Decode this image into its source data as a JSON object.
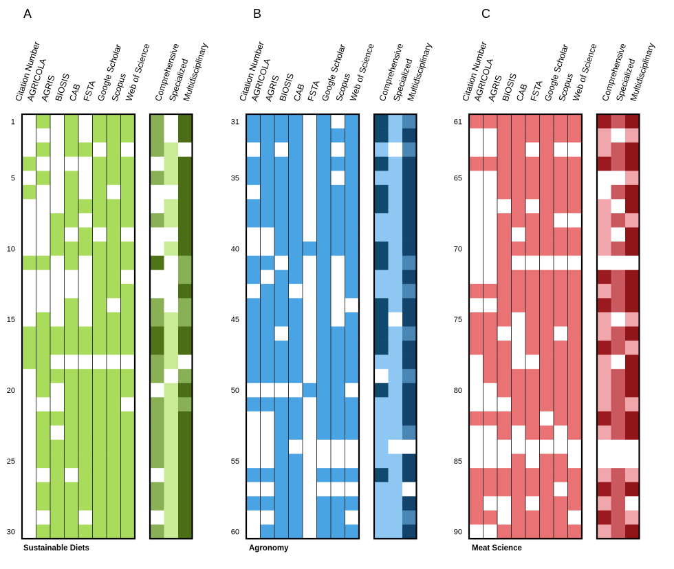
{
  "figure": {
    "panels": [
      "A",
      "B",
      "C"
    ],
    "database_headers": [
      "Citation Number",
      "AGRICOLA",
      "AGRIS",
      "BIOSIS",
      "CAB",
      "FSTA",
      "Google Scholar",
      "Scopus",
      "Web of Science"
    ],
    "category_headers": [
      "Comprehensive",
      "Specialized",
      "Multidisciplinary"
    ]
  },
  "chart_data": [
    {
      "type": "heatmap",
      "panel": "A",
      "title": "Sustainable Diets",
      "row_labels": [
        "1",
        "5",
        "10",
        "15",
        "20",
        "25",
        "30"
      ],
      "row_label_values": [
        1,
        5,
        10,
        15,
        20,
        25,
        30
      ],
      "rows": [
        1,
        30
      ],
      "columns": [
        "AGRICOLA",
        "AGRIS",
        "BIOSIS",
        "CAB",
        "FSTA",
        "Google Scholar",
        "Scopus",
        "Web of Science"
      ],
      "categories": [
        "Comprehensive",
        "Specialized",
        "Multidisciplinary"
      ],
      "colors": {
        "database": "#a9dc5d",
        "comprehensive": "#89b054",
        "specialized": "#c9eb98",
        "multidisciplinary": "#4a6d16",
        "dark_category": "#4f7417"
      },
      "present": [
        [
          0,
          1,
          0,
          1,
          0,
          1,
          1,
          1
        ],
        [
          0,
          0,
          0,
          1,
          0,
          1,
          1,
          1
        ],
        [
          0,
          1,
          0,
          1,
          1,
          0,
          1,
          0
        ],
        [
          1,
          0,
          0,
          0,
          0,
          1,
          1,
          1
        ],
        [
          0,
          1,
          0,
          1,
          0,
          1,
          1,
          1
        ],
        [
          1,
          0,
          0,
          1,
          0,
          1,
          0,
          1
        ],
        [
          0,
          0,
          0,
          1,
          1,
          1,
          1,
          1
        ],
        [
          0,
          0,
          1,
          1,
          0,
          1,
          1,
          1
        ],
        [
          0,
          0,
          1,
          0,
          1,
          0,
          1,
          0
        ],
        [
          0,
          0,
          1,
          1,
          1,
          1,
          1,
          1
        ],
        [
          1,
          1,
          0,
          1,
          0,
          1,
          1,
          1
        ],
        [
          0,
          0,
          0,
          0,
          0,
          1,
          1,
          0
        ],
        [
          0,
          0,
          0,
          0,
          0,
          1,
          1,
          1
        ],
        [
          0,
          0,
          0,
          1,
          0,
          1,
          0,
          1
        ],
        [
          0,
          1,
          0,
          1,
          0,
          1,
          1,
          1
        ],
        [
          1,
          1,
          1,
          1,
          1,
          1,
          1,
          1
        ],
        [
          1,
          1,
          1,
          1,
          1,
          1,
          1,
          1
        ],
        [
          1,
          1,
          0,
          0,
          0,
          0,
          0,
          0
        ],
        [
          0,
          1,
          1,
          1,
          1,
          1,
          1,
          1
        ],
        [
          0,
          1,
          0,
          1,
          1,
          1,
          1,
          1
        ],
        [
          0,
          0,
          0,
          1,
          1,
          1,
          1,
          0
        ],
        [
          0,
          1,
          1,
          1,
          1,
          1,
          1,
          1
        ],
        [
          0,
          1,
          0,
          1,
          1,
          1,
          1,
          1
        ],
        [
          0,
          1,
          1,
          1,
          1,
          1,
          1,
          1
        ],
        [
          0,
          1,
          1,
          1,
          1,
          1,
          1,
          1
        ],
        [
          0,
          0,
          1,
          0,
          1,
          1,
          1,
          1
        ],
        [
          0,
          1,
          1,
          1,
          1,
          1,
          1,
          1
        ],
        [
          0,
          1,
          1,
          1,
          1,
          1,
          1,
          1
        ],
        [
          0,
          0,
          1,
          1,
          0,
          1,
          1,
          1
        ],
        [
          0,
          1,
          1,
          1,
          1,
          1,
          1,
          1
        ]
      ],
      "category_levels": [
        [
          1,
          0,
          2
        ],
        [
          1,
          0,
          2
        ],
        [
          1,
          1,
          0
        ],
        [
          0,
          1,
          2
        ],
        [
          1,
          1,
          2
        ],
        [
          0,
          0,
          2
        ],
        [
          0,
          1,
          2
        ],
        [
          1,
          1,
          2
        ],
        [
          0,
          0,
          2
        ],
        [
          0,
          1,
          2
        ],
        [
          2,
          0,
          1
        ],
        [
          0,
          0,
          1
        ],
        [
          0,
          0,
          2
        ],
        [
          1,
          0,
          1
        ],
        [
          1,
          1,
          1
        ],
        [
          2,
          1,
          2
        ],
        [
          2,
          1,
          2
        ],
        [
          1,
          1,
          0
        ],
        [
          1,
          0,
          1
        ],
        [
          0,
          1,
          2
        ],
        [
          1,
          1,
          1
        ],
        [
          1,
          1,
          2
        ],
        [
          1,
          1,
          2
        ],
        [
          1,
          1,
          2
        ],
        [
          1,
          1,
          2
        ],
        [
          0,
          1,
          2
        ],
        [
          1,
          1,
          2
        ],
        [
          1,
          1,
          2
        ],
        [
          0,
          1,
          2
        ],
        [
          1,
          1,
          2
        ]
      ]
    },
    {
      "type": "heatmap",
      "panel": "B",
      "title": "Agronomy",
      "row_labels": [
        "31",
        "35",
        "40",
        "45",
        "50",
        "55",
        "60"
      ],
      "row_label_values": [
        31,
        35,
        40,
        45,
        50,
        55,
        60
      ],
      "rows": [
        31,
        60
      ],
      "columns": [
        "AGRICOLA",
        "AGRIS",
        "BIOSIS",
        "CAB",
        "FSTA",
        "Google Scholar",
        "Scopus",
        "Web of Science"
      ],
      "categories": [
        "Comprehensive",
        "Specialized",
        "Multidisciplinary"
      ],
      "colors": {
        "database": "#4aa3e3",
        "comprehensive": "#0f4a6e",
        "specialized": "#8ec8f2",
        "multidisciplinary": "#13436a",
        "mid": "#4a86b4"
      },
      "present": [
        [
          1,
          1,
          1,
          1,
          0,
          1,
          0,
          1
        ],
        [
          1,
          1,
          1,
          1,
          0,
          1,
          1,
          1
        ],
        [
          0,
          1,
          0,
          1,
          0,
          1,
          0,
          1
        ],
        [
          1,
          1,
          1,
          1,
          0,
          1,
          1,
          1
        ],
        [
          1,
          1,
          1,
          1,
          0,
          1,
          0,
          1
        ],
        [
          0,
          1,
          1,
          1,
          0,
          1,
          1,
          1
        ],
        [
          1,
          1,
          1,
          1,
          0,
          1,
          1,
          1
        ],
        [
          1,
          1,
          1,
          1,
          0,
          1,
          1,
          1
        ],
        [
          0,
          0,
          1,
          1,
          0,
          1,
          1,
          1
        ],
        [
          0,
          0,
          1,
          1,
          1,
          1,
          1,
          1
        ],
        [
          1,
          1,
          0,
          1,
          0,
          1,
          0,
          1
        ],
        [
          1,
          0,
          1,
          1,
          0,
          1,
          0,
          1
        ],
        [
          0,
          1,
          1,
          0,
          0,
          1,
          0,
          1
        ],
        [
          1,
          1,
          1,
          1,
          0,
          1,
          0,
          0
        ],
        [
          1,
          1,
          1,
          1,
          0,
          1,
          0,
          1
        ],
        [
          1,
          1,
          0,
          1,
          0,
          1,
          1,
          1
        ],
        [
          1,
          1,
          1,
          1,
          0,
          1,
          1,
          1
        ],
        [
          1,
          1,
          1,
          1,
          0,
          1,
          1,
          1
        ],
        [
          1,
          1,
          1,
          1,
          0,
          1,
          1,
          1
        ],
        [
          0,
          0,
          0,
          0,
          1,
          1,
          1,
          0
        ],
        [
          1,
          1,
          1,
          1,
          0,
          1,
          1,
          1
        ],
        [
          0,
          0,
          1,
          1,
          0,
          1,
          1,
          1
        ],
        [
          0,
          0,
          1,
          1,
          0,
          1,
          1,
          1
        ],
        [
          0,
          0,
          1,
          0,
          0,
          0,
          0,
          0
        ],
        [
          0,
          0,
          1,
          1,
          0,
          0,
          0,
          0
        ],
        [
          1,
          1,
          1,
          1,
          0,
          1,
          1,
          1
        ],
        [
          0,
          0,
          1,
          1,
          0,
          0,
          0,
          0
        ],
        [
          1,
          1,
          1,
          1,
          0,
          1,
          1,
          1
        ],
        [
          0,
          0,
          1,
          1,
          0,
          1,
          1,
          0
        ],
        [
          0,
          1,
          1,
          1,
          0,
          1,
          1,
          1
        ]
      ],
      "category_levels": [
        [
          2,
          1,
          1
        ],
        [
          2,
          1,
          2
        ],
        [
          1,
          0,
          1
        ],
        [
          2,
          1,
          2
        ],
        [
          1,
          1,
          2
        ],
        [
          2,
          1,
          2
        ],
        [
          2,
          1,
          2
        ],
        [
          1,
          1,
          2
        ],
        [
          1,
          1,
          2
        ],
        [
          2,
          1,
          2
        ],
        [
          2,
          1,
          1
        ],
        [
          1,
          1,
          2
        ],
        [
          1,
          1,
          1
        ],
        [
          2,
          1,
          2
        ],
        [
          2,
          0,
          2
        ],
        [
          2,
          1,
          1
        ],
        [
          2,
          1,
          2
        ],
        [
          1,
          1,
          2
        ],
        [
          0,
          1,
          1
        ],
        [
          2,
          1,
          2
        ],
        [
          1,
          1,
          2
        ],
        [
          1,
          1,
          2
        ],
        [
          1,
          1,
          1
        ],
        [
          1,
          0,
          0
        ],
        [
          1,
          1,
          2
        ],
        [
          2,
          1,
          2
        ],
        [
          1,
          1,
          0
        ],
        [
          1,
          1,
          2
        ],
        [
          1,
          1,
          1
        ],
        [
          1,
          1,
          2
        ]
      ]
    },
    {
      "type": "heatmap",
      "panel": "C",
      "title": "Meat Science",
      "row_labels": [
        "61",
        "65",
        "70",
        "75",
        "80",
        "85",
        "90"
      ],
      "row_label_values": [
        61,
        65,
        70,
        75,
        80,
        85,
        90
      ],
      "rows": [
        61,
        90
      ],
      "columns": [
        "AGRICOLA",
        "AGRIS",
        "BIOSIS",
        "CAB",
        "FSTA",
        "Google Scholar",
        "Scopus",
        "Web of Science"
      ],
      "categories": [
        "Comprehensive",
        "Specialized",
        "Multidisciplinary"
      ],
      "colors": {
        "database": "#e97274",
        "comprehensive": "#9b1a1f",
        "specialized": "#c9595f",
        "multidisciplinary": "#8f1519",
        "light": "#f0a6ab"
      },
      "present": [
        [
          1,
          1,
          1,
          1,
          1,
          1,
          1,
          1
        ],
        [
          0,
          0,
          1,
          1,
          1,
          1,
          1,
          1
        ],
        [
          0,
          0,
          1,
          1,
          0,
          1,
          0,
          0
        ],
        [
          1,
          1,
          1,
          1,
          1,
          1,
          1,
          1
        ],
        [
          0,
          0,
          1,
          1,
          1,
          1,
          1,
          1
        ],
        [
          0,
          0,
          1,
          1,
          1,
          1,
          1,
          1
        ],
        [
          0,
          0,
          0,
          1,
          0,
          1,
          1,
          1
        ],
        [
          0,
          0,
          1,
          1,
          1,
          1,
          0,
          0
        ],
        [
          0,
          0,
          1,
          0,
          1,
          1,
          1,
          1
        ],
        [
          0,
          0,
          1,
          1,
          1,
          1,
          1,
          1
        ],
        [
          0,
          0,
          1,
          0,
          0,
          0,
          0,
          0
        ],
        [
          0,
          0,
          1,
          1,
          1,
          1,
          1,
          1
        ],
        [
          1,
          1,
          1,
          1,
          1,
          1,
          1,
          1
        ],
        [
          0,
          0,
          1,
          1,
          1,
          1,
          1,
          1
        ],
        [
          1,
          1,
          1,
          0,
          1,
          1,
          1,
          1
        ],
        [
          1,
          1,
          0,
          0,
          1,
          1,
          0,
          1
        ],
        [
          1,
          1,
          1,
          0,
          1,
          1,
          1,
          1
        ],
        [
          0,
          1,
          1,
          0,
          0,
          1,
          1,
          1
        ],
        [
          0,
          1,
          1,
          1,
          1,
          1,
          1,
          1
        ],
        [
          0,
          0,
          1,
          1,
          1,
          1,
          1,
          1
        ],
        [
          0,
          0,
          0,
          1,
          1,
          1,
          1,
          1
        ],
        [
          1,
          1,
          1,
          1,
          1,
          0,
          1,
          1
        ],
        [
          0,
          0,
          1,
          0,
          1,
          1,
          0,
          1
        ],
        [
          0,
          0,
          0,
          0,
          0,
          0,
          0,
          0
        ],
        [
          0,
          0,
          0,
          1,
          0,
          1,
          1,
          0
        ],
        [
          1,
          1,
          1,
          1,
          1,
          1,
          1,
          1
        ],
        [
          1,
          1,
          1,
          1,
          1,
          1,
          0,
          1
        ],
        [
          1,
          0,
          0,
          1,
          0,
          1,
          1,
          1
        ],
        [
          1,
          1,
          0,
          1,
          1,
          1,
          1,
          0
        ],
        [
          0,
          0,
          1,
          1,
          1,
          1,
          1,
          1
        ]
      ],
      "category_levels": [
        [
          2,
          1,
          2
        ],
        [
          1,
          0,
          1
        ],
        [
          1,
          1,
          2
        ],
        [
          2,
          1,
          2
        ],
        [
          0,
          0,
          1
        ],
        [
          0,
          1,
          2
        ],
        [
          1,
          0,
          2
        ],
        [
          1,
          1,
          1
        ],
        [
          1,
          0,
          2
        ],
        [
          1,
          1,
          2
        ],
        [
          0,
          0,
          0
        ],
        [
          2,
          1,
          2
        ],
        [
          1,
          1,
          2
        ],
        [
          2,
          1,
          2
        ],
        [
          1,
          0,
          1
        ],
        [
          1,
          1,
          2
        ],
        [
          2,
          1,
          1
        ],
        [
          1,
          0,
          2
        ],
        [
          1,
          1,
          2
        ],
        [
          1,
          1,
          2
        ],
        [
          1,
          1,
          1
        ],
        [
          2,
          1,
          2
        ],
        [
          1,
          1,
          2
        ],
        [
          0,
          0,
          0
        ],
        [
          0,
          0,
          0
        ],
        [
          1,
          1,
          1
        ],
        [
          2,
          1,
          2
        ],
        [
          1,
          1,
          0
        ],
        [
          2,
          1,
          1
        ],
        [
          1,
          1,
          2
        ]
      ]
    }
  ]
}
